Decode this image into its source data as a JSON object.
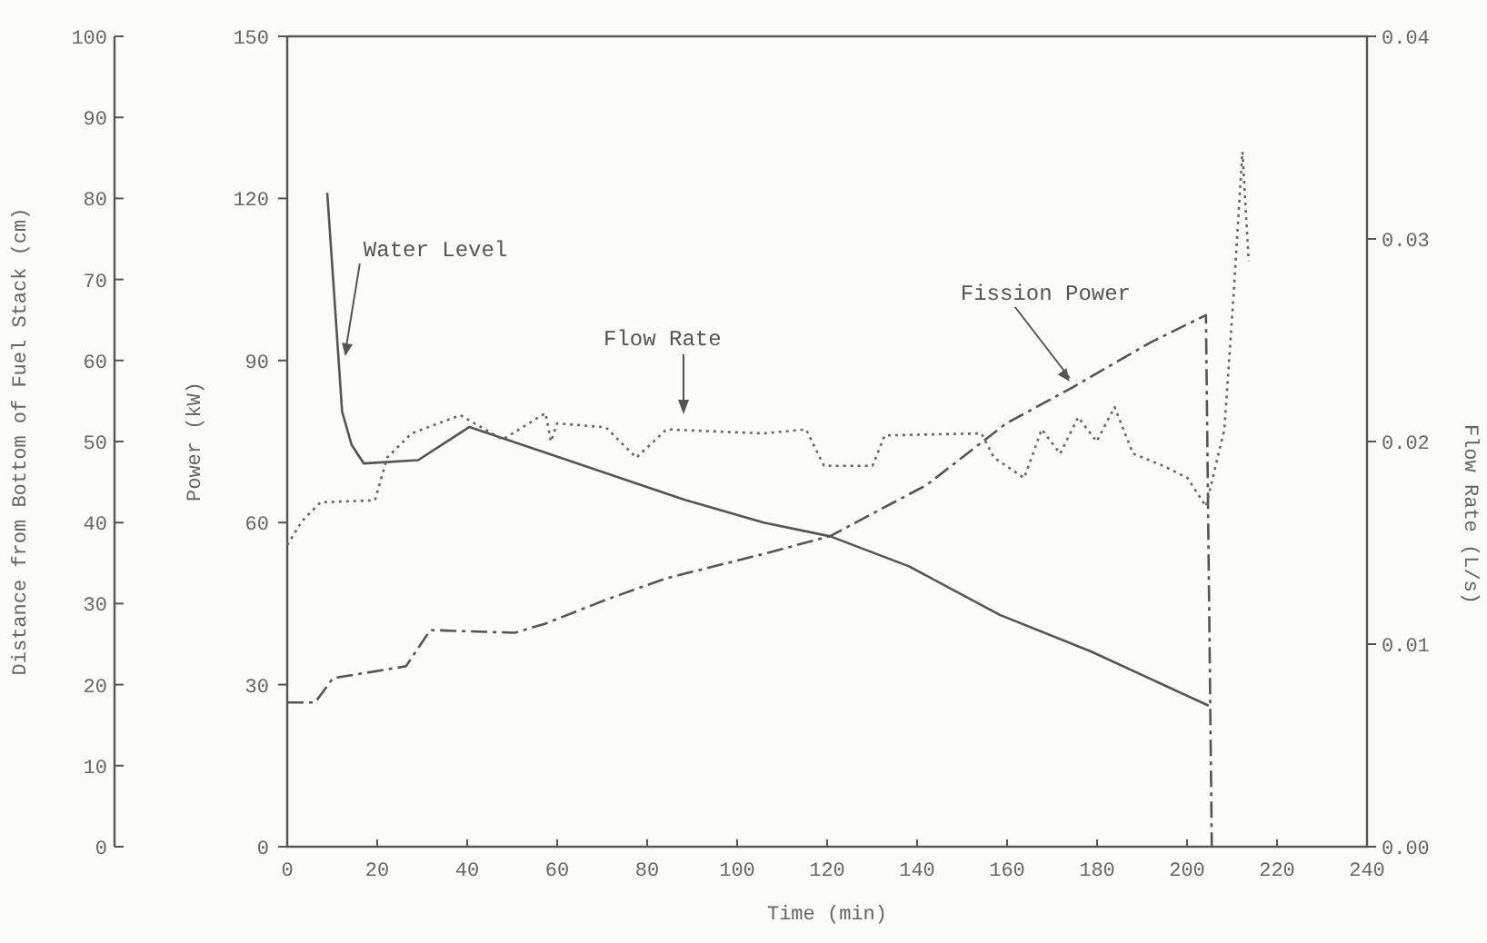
{
  "chart_data": {
    "type": "line",
    "xlabel": "Time (min)",
    "ylabel": "Power (kW)",
    "y2label": "Flow Rate (L/s)",
    "y3label": "Distance from Bottom of Fuel Stack (cm)",
    "xlim": [
      0,
      240
    ],
    "xticks": [
      0,
      20,
      40,
      60,
      80,
      100,
      120,
      140,
      160,
      180,
      200,
      220,
      240
    ],
    "ylim": [
      0,
      150
    ],
    "yticks": [
      0,
      30,
      60,
      90,
      120,
      150
    ],
    "y2lim": [
      0,
      0.04
    ],
    "y2ticks": [
      {
        "value": 0,
        "label": "0.00"
      },
      {
        "value": 0.01,
        "label": "0.01"
      },
      {
        "value": 0.02,
        "label": "0.02"
      },
      {
        "value": 0.03,
        "label": "0.03"
      },
      {
        "value": 0.04,
        "label": "0.04"
      }
    ],
    "y3lim": [
      0,
      100
    ],
    "y3ticks": [
      0,
      10,
      20,
      30,
      40,
      50,
      60,
      70,
      80,
      90,
      100
    ],
    "grid": false,
    "series": [
      {
        "color": "#555555",
        "axis": "y3",
        "line_style": "solid",
        "x": [
          8.9,
          12.2,
          14.3,
          17,
          29.1,
          40.5,
          88.4,
          105.9,
          120.7,
          138.2,
          158.4,
          178.6,
          204.8
        ],
        "values": [
          80.7,
          53.7,
          49.6,
          47.3,
          47.7,
          51.8,
          42.8,
          40,
          38.3,
          34.6,
          28.6,
          24.1,
          17.4
        ]
      },
      {
        "color": "#555555",
        "axis": "y",
        "line_style": "dashed",
        "x": [
          0,
          6.2,
          10.2,
          26.4,
          31.8,
          50.6,
          57.4,
          70.8,
          84.3,
          105.9,
          120.7,
          142.2,
          159.7,
          174.5,
          192,
          204.2,
          205.5
        ],
        "values": [
          26.7,
          26.7,
          31.2,
          33.4,
          40.1,
          39.6,
          41.3,
          45.7,
          49.7,
          54.2,
          57.5,
          67,
          78.3,
          85,
          93.4,
          98.4,
          0
        ]
      },
      {
        "color": "#666666",
        "axis": "y2",
        "line_style": "dotted",
        "x": [
          0,
          3.4,
          7.4,
          19.5,
          22.2,
          27.6,
          38.5,
          47.9,
          57.4,
          58.6,
          60,
          70.8,
          77.6,
          84.3,
          105.9,
          115.3,
          119.3,
          130.1,
          132.8,
          154.3,
          157.1,
          163.8,
          167.7,
          171.8,
          175.8,
          179.9,
          183.9,
          188,
          194.7,
          200.1,
          204.2,
          208.3,
          210.3,
          212.3,
          213.7
        ],
        "values": [
          0.0149,
          0.0161,
          0.017,
          0.0171,
          0.0192,
          0.0204,
          0.0213,
          0.0201,
          0.0214,
          0.02,
          0.0209,
          0.0207,
          0.0192,
          0.0206,
          0.0204,
          0.0206,
          0.0188,
          0.0188,
          0.0203,
          0.0204,
          0.0192,
          0.0182,
          0.0206,
          0.0194,
          0.0212,
          0.02,
          0.0217,
          0.0194,
          0.0188,
          0.0182,
          0.0168,
          0.0206,
          0.0271,
          0.0343,
          0.0289
        ]
      }
    ],
    "annotations": [
      {
        "text": "Water Level",
        "x": 12.9,
        "y": 90.8
      },
      "Flow Rate",
      {
        "text": "Fission Power",
        "x": 173.9,
        "y": 86.1
      }
    ]
  }
}
